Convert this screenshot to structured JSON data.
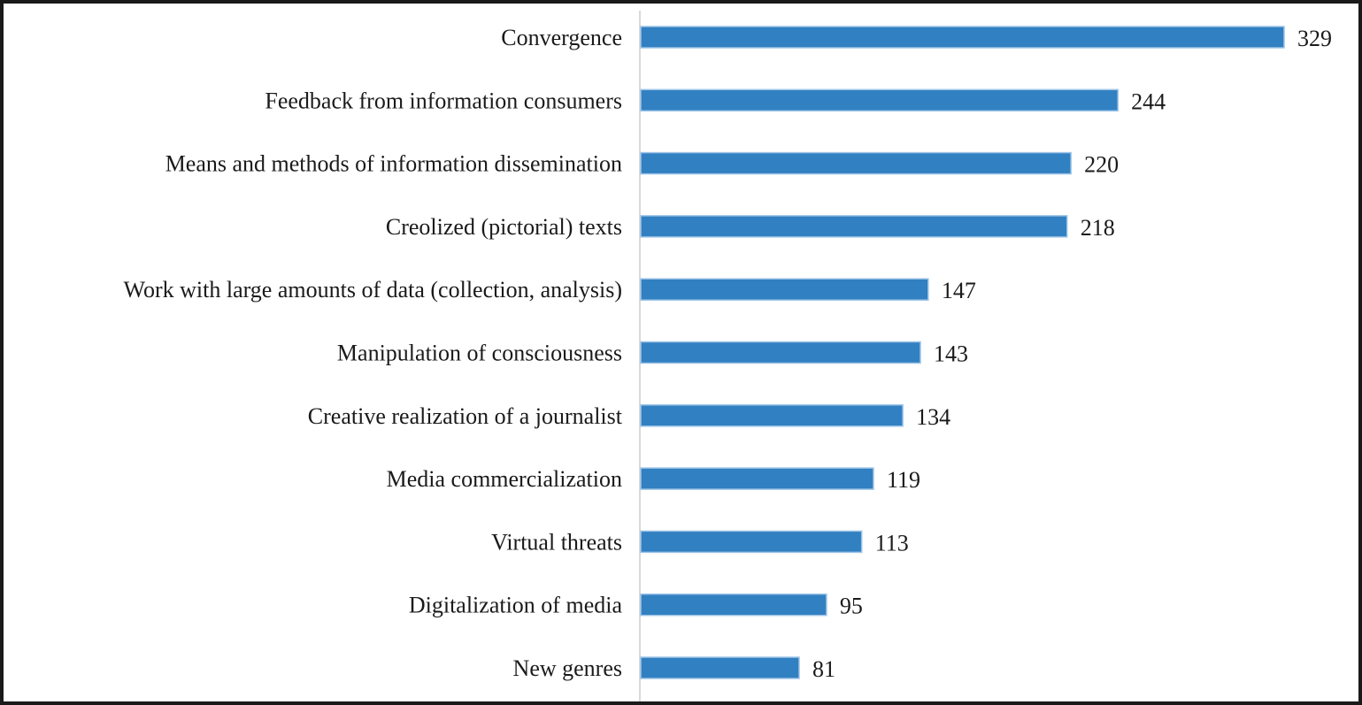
{
  "chart_data": {
    "type": "bar",
    "orientation": "horizontal",
    "title": "",
    "xlabel": "",
    "ylabel": "",
    "categories": [
      "Convergence",
      "Feedback from information consumers",
      "Means and methods of information dissemination",
      "Creolized (pictorial) texts",
      "Work with large amounts of data (collection, analysis)",
      "Manipulation of consciousness",
      "Creative realization of a journalist",
      "Media commercialization",
      "Virtual threats",
      "Digitalization of media",
      "New genres"
    ],
    "values": [
      329,
      244,
      220,
      218,
      147,
      143,
      134,
      119,
      113,
      95,
      81
    ],
    "xlim": [
      0,
      329
    ],
    "grid": false,
    "data_labels": true,
    "bar_color": "#3180c1",
    "axis_color": "#d9d9d9"
  }
}
